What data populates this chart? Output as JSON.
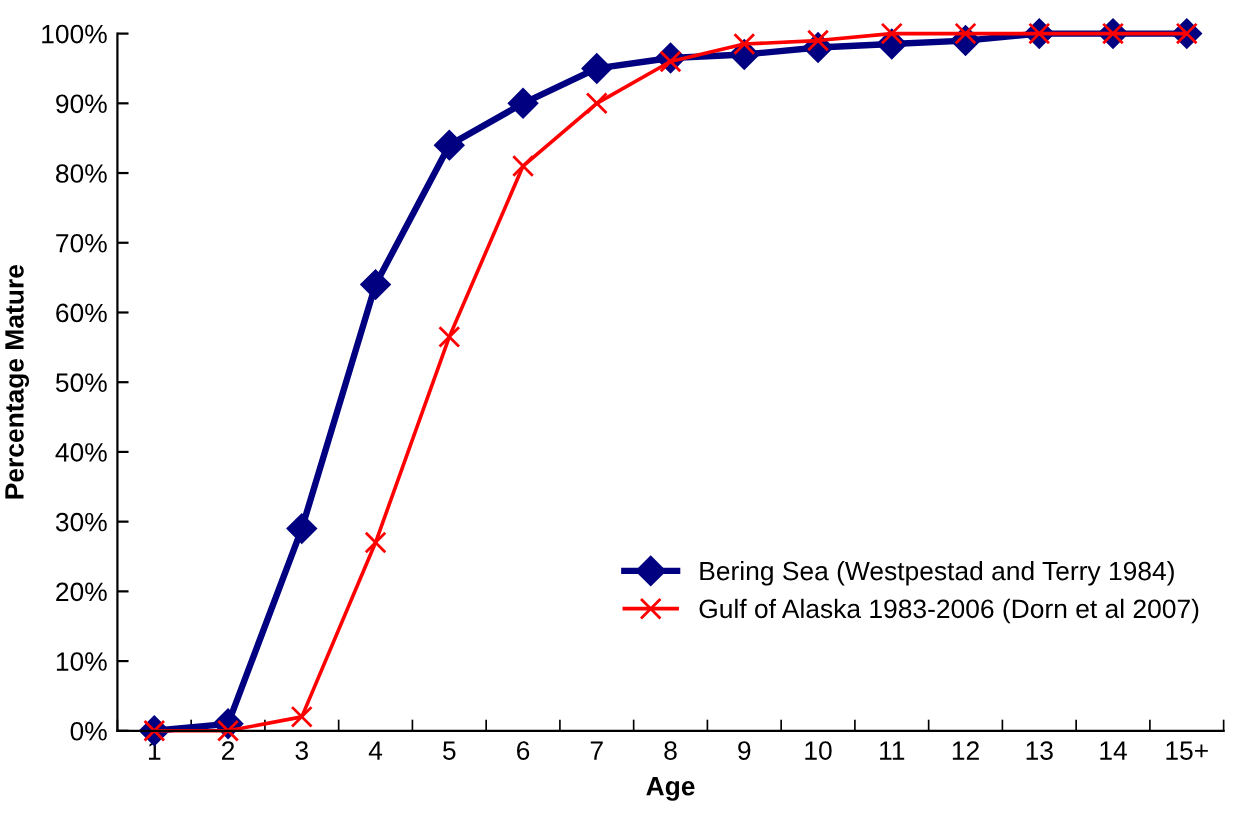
{
  "chart_data": {
    "type": "line",
    "xlabel": "Age",
    "ylabel": "Percentage Mature",
    "categories": [
      "1",
      "2",
      "3",
      "4",
      "5",
      "6",
      "7",
      "8",
      "9",
      "10",
      "11",
      "12",
      "13",
      "14",
      "15+"
    ],
    "series": [
      {
        "name": "Bering Sea (Westpestad and Terry 1984)",
        "color": "#000080",
        "marker": "diamond",
        "values": [
          0,
          1,
          29,
          64,
          84,
          90,
          95,
          96.5,
          97,
          98,
          98.5,
          99,
          100,
          100,
          100
        ]
      },
      {
        "name": "Gulf of Alaska 1983-2006 (Dorn et al 2007)",
        "color": "#ff0000",
        "marker": "cross",
        "values": [
          0,
          0,
          2,
          27,
          56.5,
          81,
          90,
          96,
          98.5,
          99,
          100,
          100,
          100,
          100,
          100
        ]
      }
    ],
    "ylim": [
      0,
      100
    ],
    "yticks": [
      {
        "value": 0,
        "label": "0%"
      },
      {
        "value": 10,
        "label": "10%"
      },
      {
        "value": 20,
        "label": "20%"
      },
      {
        "value": 30,
        "label": "30%"
      },
      {
        "value": 40,
        "label": "40%"
      },
      {
        "value": 50,
        "label": "50%"
      },
      {
        "value": 60,
        "label": "60%"
      },
      {
        "value": 70,
        "label": "70%"
      },
      {
        "value": 80,
        "label": "80%"
      },
      {
        "value": 90,
        "label": "90%"
      },
      {
        "value": 100,
        "label": "100%"
      }
    ],
    "grid": false,
    "legend": "lower right",
    "line_style": "solid"
  }
}
